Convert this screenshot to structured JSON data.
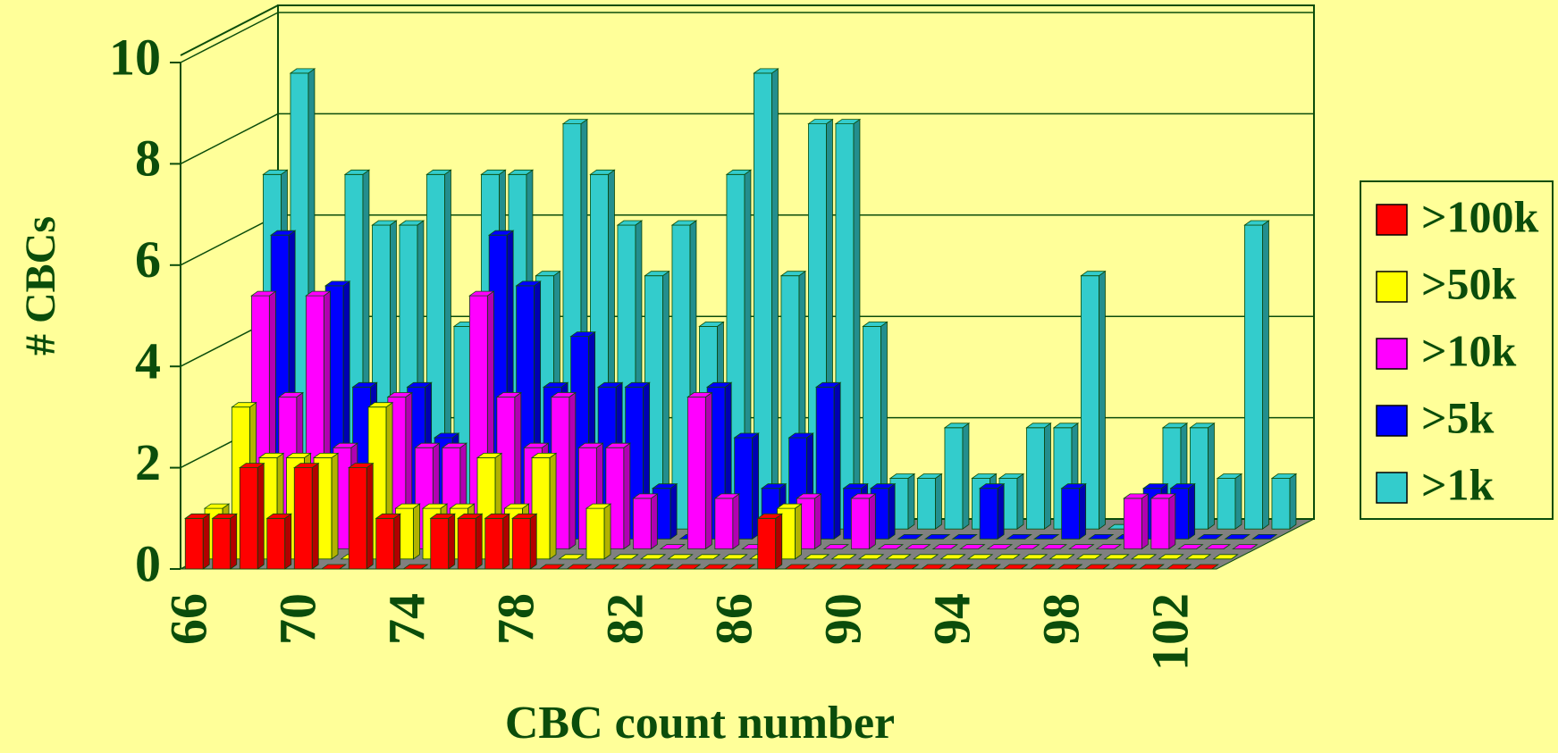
{
  "chart_data": {
    "type": "bar3d",
    "x_label": "CBC count number",
    "y_label": "# CBCs",
    "categories": [
      "66",
      null,
      null,
      null,
      "70",
      null,
      null,
      null,
      "74",
      null,
      null,
      null,
      "78",
      null,
      null,
      null,
      "82",
      null,
      null,
      null,
      "86",
      null,
      null,
      null,
      "90",
      null,
      null,
      null,
      "94",
      null,
      null,
      null,
      "98",
      null,
      null,
      null,
      "102",
      null
    ],
    "series": [
      {
        "name": ">100k",
        "color": "#ff0000",
        "values": [
          1,
          1,
          2,
          1,
          2,
          0,
          2,
          1,
          0,
          1,
          1,
          1,
          1,
          0,
          0,
          0,
          0,
          0,
          0,
          0,
          0,
          1,
          0,
          0,
          0,
          0,
          0,
          0,
          0,
          0,
          0,
          0,
          0,
          0,
          0,
          0,
          0,
          0
        ]
      },
      {
        "name": ">50k",
        "color": "#ffff00",
        "values": [
          1,
          3,
          2,
          2,
          2,
          0,
          3,
          1,
          1,
          1,
          2,
          1,
          2,
          0,
          1,
          0,
          0,
          0,
          0,
          0,
          0,
          1,
          0,
          0,
          0,
          0,
          0,
          0,
          0,
          0,
          0,
          0,
          0,
          0,
          0,
          0,
          0,
          0
        ]
      },
      {
        "name": ">10k",
        "color": "#ff00ff",
        "values": [
          0,
          5,
          3,
          5,
          2,
          0,
          3,
          2,
          2,
          5,
          3,
          2,
          3,
          2,
          2,
          1,
          0,
          3,
          1,
          0,
          0,
          1,
          0,
          1,
          0,
          0,
          0,
          0,
          0,
          0,
          0,
          0,
          0,
          1,
          1,
          0,
          0,
          0
        ]
      },
      {
        "name": ">5k",
        "color": "#0000ff",
        "values": [
          0,
          6,
          0,
          5,
          3,
          0,
          3,
          2,
          0,
          6,
          5,
          3,
          4,
          3,
          3,
          1,
          0,
          3,
          2,
          1,
          2,
          3,
          1,
          1,
          0,
          0,
          0,
          1,
          0,
          0,
          1,
          0,
          0,
          1,
          1,
          0,
          0,
          0
        ]
      },
      {
        "name": ">1k",
        "color": "#33cccc",
        "values": [
          7,
          9,
          0,
          7,
          6,
          6,
          7,
          4,
          7,
          7,
          5,
          8,
          7,
          6,
          5,
          6,
          4,
          7,
          9,
          5,
          8,
          8,
          4,
          1,
          1,
          2,
          1,
          1,
          2,
          2,
          5,
          0,
          0,
          2,
          2,
          1,
          6,
          1
        ]
      }
    ],
    "ylim": [
      0,
      10
    ],
    "yticks": [
      0,
      2,
      4,
      6,
      8,
      10
    ],
    "grid": true
  }
}
